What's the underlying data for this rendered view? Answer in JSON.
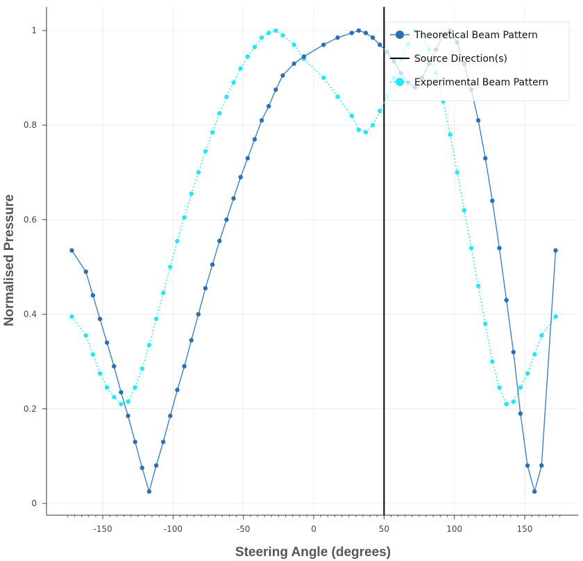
{
  "chart_data": {
    "type": "line",
    "xlabel": "Steering Angle (degrees)",
    "ylabel": "Normalised Pressure",
    "xlim": [
      -190,
      188
    ],
    "ylim": [
      -0.025,
      1.05
    ],
    "xticks": [
      -150,
      -100,
      -50,
      0,
      50,
      100,
      150
    ],
    "yticks": [
      0,
      0.2,
      0.4,
      0.6,
      0.8,
      1
    ],
    "xtick_labels": [
      "-150",
      "-100",
      "-50",
      "0",
      "50",
      "100",
      "150"
    ],
    "ytick_labels": [
      "0",
      "0.2",
      "0.4",
      "0.6",
      "0.8",
      "1"
    ],
    "grid": true,
    "legend_position": "top-right",
    "legend_labels": {
      "theoretical": "Theoretical Beam Pattern",
      "source": "Source Direction(s)",
      "experimental": "Experimental Beam Pattern"
    },
    "colors": {
      "theoretical": "#2f6fb0",
      "theoretical_line": "#3a80c4",
      "experimental": "#22e8f2",
      "source": "#000000"
    },
    "source_directions": [
      50
    ],
    "series": [
      {
        "key": "theoretical",
        "x": [
          -172,
          -162,
          -157,
          -152,
          -147,
          -142,
          -137,
          -132,
          -127,
          -122,
          -117,
          -112,
          -107,
          -102,
          -97,
          -92,
          -87,
          -82,
          -77,
          -72,
          -67,
          -62,
          -57,
          -52,
          -47,
          -42,
          -37,
          -32,
          -27,
          -22,
          -14,
          -7,
          7,
          17,
          27,
          32,
          37,
          42,
          47,
          52,
          57,
          62,
          67,
          72,
          77,
          82,
          87,
          92,
          97,
          102,
          107,
          112,
          117,
          122,
          127,
          132,
          137,
          142,
          147,
          152,
          157,
          162,
          172
        ],
        "y": [
          0.535,
          0.49,
          0.44,
          0.39,
          0.34,
          0.29,
          0.235,
          0.185,
          0.13,
          0.075,
          0.025,
          0.08,
          0.13,
          0.185,
          0.24,
          0.29,
          0.345,
          0.4,
          0.455,
          0.505,
          0.555,
          0.6,
          0.645,
          0.69,
          0.73,
          0.77,
          0.81,
          0.84,
          0.875,
          0.905,
          0.93,
          0.945,
          0.97,
          0.985,
          0.995,
          1.0,
          0.995,
          0.985,
          0.97,
          0.955,
          0.935,
          0.91,
          0.89,
          0.88,
          0.9,
          0.93,
          0.96,
          0.99,
          1.0,
          0.975,
          0.93,
          0.875,
          0.81,
          0.73,
          0.64,
          0.54,
          0.43,
          0.32,
          0.19,
          0.08,
          0.025,
          0.08,
          0.535
        ]
      },
      {
        "key": "experimental",
        "x": [
          -172,
          -162,
          -157,
          -152,
          -147,
          -142,
          -137,
          -132,
          -127,
          -122,
          -117,
          -112,
          -107,
          -102,
          -97,
          -92,
          -87,
          -82,
          -77,
          -72,
          -67,
          -62,
          -57,
          -52,
          -47,
          -42,
          -37,
          -32,
          -27,
          -22,
          -14,
          -7,
          7,
          17,
          27,
          32,
          37,
          42,
          47,
          52,
          57,
          62,
          67,
          72,
          77,
          82,
          87,
          92,
          97,
          102,
          107,
          112,
          117,
          122,
          127,
          132,
          137,
          142,
          147,
          152,
          157,
          162,
          172
        ],
        "y": [
          0.395,
          0.355,
          0.315,
          0.275,
          0.245,
          0.225,
          0.21,
          0.215,
          0.245,
          0.285,
          0.335,
          0.39,
          0.445,
          0.5,
          0.555,
          0.605,
          0.655,
          0.7,
          0.745,
          0.785,
          0.825,
          0.86,
          0.89,
          0.92,
          0.945,
          0.965,
          0.985,
          0.995,
          1.0,
          0.99,
          0.97,
          0.94,
          0.9,
          0.86,
          0.82,
          0.79,
          0.785,
          0.8,
          0.83,
          0.86,
          0.9,
          0.94,
          0.97,
          1.0,
          0.99,
          0.96,
          0.91,
          0.85,
          0.78,
          0.7,
          0.62,
          0.54,
          0.46,
          0.38,
          0.3,
          0.245,
          0.21,
          0.215,
          0.245,
          0.275,
          0.315,
          0.355,
          0.395
        ]
      }
    ]
  }
}
